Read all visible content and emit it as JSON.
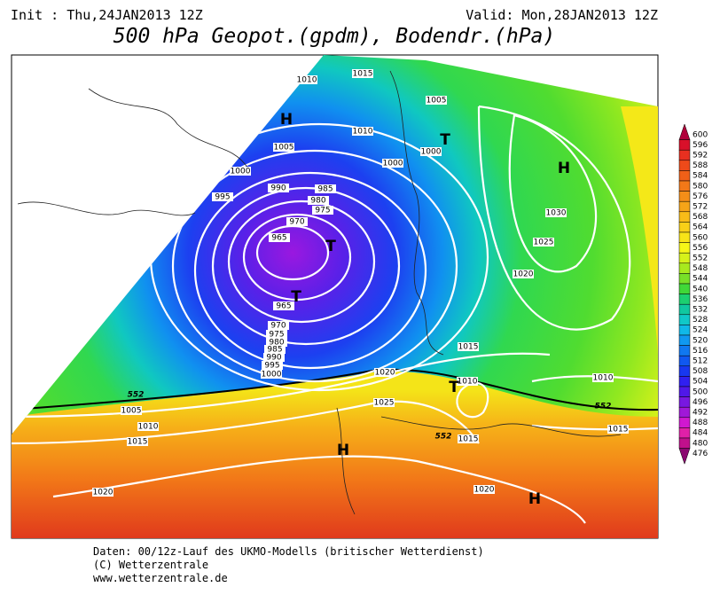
{
  "header": {
    "init": "Init : Thu,24JAN2013 12Z",
    "valid": "Valid: Mon,28JAN2013 12Z",
    "title": "500 hPa Geopot.(gpdm), Bodendr.(hPa)"
  },
  "isobar_labels": [
    1010,
    1015,
    1005,
    1010,
    1005,
    1000,
    1000,
    1000,
    995,
    990,
    985,
    980,
    975,
    970,
    965,
    1030,
    1025,
    1020,
    965,
    970,
    975,
    980,
    985,
    990,
    995,
    1000,
    1015,
    1020,
    1010,
    1010,
    1025,
    1005,
    1010,
    1015,
    1015,
    1015,
    1020,
    1020
  ],
  "contour_552_labels": [
    552,
    552,
    552
  ],
  "centers": [
    "H",
    "H",
    "H",
    "H",
    "T",
    "T",
    "T",
    "T"
  ],
  "colorbar": {
    "levels": [
      600,
      596,
      592,
      588,
      584,
      580,
      576,
      572,
      568,
      564,
      560,
      556,
      552,
      548,
      544,
      540,
      536,
      532,
      528,
      524,
      520,
      516,
      512,
      508,
      504,
      500,
      496,
      492,
      488,
      484,
      480,
      476
    ],
    "colors": [
      "#b0003a",
      "#d8102a",
      "#e83020",
      "#ee4a1a",
      "#f06018",
      "#f27818",
      "#f48e18",
      "#f6a418",
      "#f8bc18",
      "#f8d018",
      "#f8e418",
      "#f6f618",
      "#d6f21a",
      "#a8ea1e",
      "#78e028",
      "#40d838",
      "#1cd070",
      "#10c8a0",
      "#10c8c8",
      "#10b8e8",
      "#1098f0",
      "#1078f0",
      "#1058f0",
      "#1838f0",
      "#3020f0",
      "#5018e8",
      "#7818e0",
      "#a018d8",
      "#d018d0",
      "#e020a8",
      "#c0108c",
      "#8a0870"
    ]
  },
  "footer": {
    "line1": "Daten: 00/12z-Lauf des UKMO-Modells (britischer Wetterdienst)",
    "line2": "(C) Wetterzentrale",
    "line3": "www.wetterzentrale.de"
  }
}
